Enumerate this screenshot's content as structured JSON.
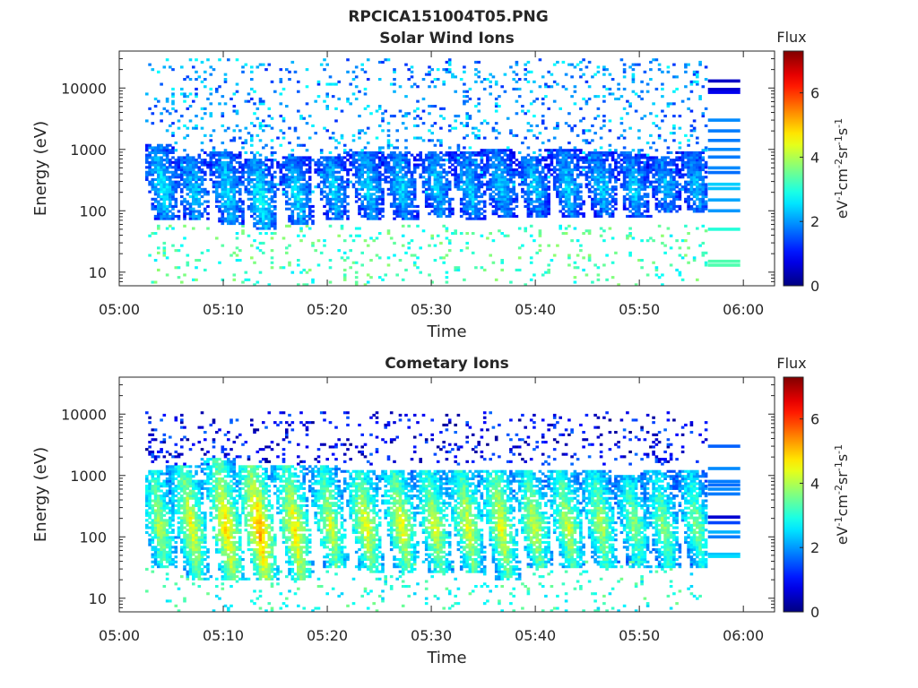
{
  "figure": {
    "title": "RPCICA151004T05.PNG"
  },
  "chart_data": [
    {
      "type": "heatmap",
      "title": "Solar Wind Ions",
      "xlabel": "Time",
      "ylabel": "Energy (eV)",
      "x_ticks": [
        "05:00",
        "05:10",
        "05:20",
        "05:30",
        "05:40",
        "05:50",
        "06:00"
      ],
      "y_ticks": [
        "10",
        "100",
        "1000",
        "10000"
      ],
      "y_scale": "log",
      "y_range": [
        6,
        40000
      ],
      "x_range_minutes": [
        0,
        63
      ],
      "data_extent_minutes": [
        2.5,
        56.5
      ],
      "colorbar": {
        "title": "Flux",
        "label": "eV-1cm-2sr-1s-1",
        "label_parts": [
          "eV",
          "-1",
          "cm",
          "-2",
          "sr",
          "-1",
          "s",
          "-1"
        ],
        "ticks": [
          "0",
          "2",
          "4",
          "6"
        ],
        "range": [
          0,
          7.3
        ],
        "colormap": "jet"
      },
      "bursts": [
        {
          "t": 4.0,
          "emin": 70,
          "emax": 1200,
          "peak_e": 250,
          "level": 2.8
        },
        {
          "t": 7.0,
          "emin": 70,
          "emax": 800,
          "peak_e": 200,
          "level": 2.6
        },
        {
          "t": 10.3,
          "emin": 60,
          "emax": 900,
          "peak_e": 200,
          "level": 2.7
        },
        {
          "t": 13.5,
          "emin": 50,
          "emax": 700,
          "peak_e": 150,
          "level": 2.9
        },
        {
          "t": 17.0,
          "emin": 60,
          "emax": 800,
          "peak_e": 180,
          "level": 2.7
        },
        {
          "t": 20.5,
          "emin": 70,
          "emax": 800,
          "peak_e": 220,
          "level": 2.6
        },
        {
          "t": 23.8,
          "emin": 70,
          "emax": 900,
          "peak_e": 250,
          "level": 2.6
        },
        {
          "t": 27.0,
          "emin": 70,
          "emax": 900,
          "peak_e": 250,
          "level": 2.6
        },
        {
          "t": 30.4,
          "emin": 80,
          "emax": 900,
          "peak_e": 250,
          "level": 2.5
        },
        {
          "t": 33.6,
          "emin": 70,
          "emax": 900,
          "peak_e": 220,
          "level": 2.5
        },
        {
          "t": 36.6,
          "emin": 80,
          "emax": 1000,
          "peak_e": 250,
          "level": 2.5
        },
        {
          "t": 39.8,
          "emin": 80,
          "emax": 800,
          "peak_e": 250,
          "level": 2.5
        },
        {
          "t": 43.0,
          "emin": 80,
          "emax": 1000,
          "peak_e": 250,
          "level": 2.5
        },
        {
          "t": 46.2,
          "emin": 80,
          "emax": 900,
          "peak_e": 250,
          "level": 2.5
        },
        {
          "t": 49.4,
          "emin": 80,
          "emax": 900,
          "peak_e": 220,
          "level": 2.5
        },
        {
          "t": 52.4,
          "emin": 90,
          "emax": 800,
          "peak_e": 250,
          "level": 2.4
        },
        {
          "t": 55.4,
          "emin": 90,
          "emax": 900,
          "peak_e": 250,
          "level": 2.4
        }
      ],
      "background": {
        "emin": 200,
        "emax": 30000,
        "level": 2.0
      },
      "low_energy_band": {
        "emin": 6,
        "emax": 60,
        "level": 3.2
      },
      "stripes": [
        {
          "e": 13000,
          "level": 0.5
        },
        {
          "e": 9500,
          "level": 0.6
        },
        {
          "e": 8500,
          "level": 0.8
        },
        {
          "e": 3000,
          "level": 1.9
        },
        {
          "e": 2000,
          "level": 1.8
        },
        {
          "e": 1400,
          "level": 1.8
        },
        {
          "e": 1000,
          "level": 1.9
        },
        {
          "e": 750,
          "level": 1.8
        },
        {
          "e": 500,
          "level": 1.9
        },
        {
          "e": 420,
          "level": 1.7
        },
        {
          "e": 270,
          "level": 2.4
        },
        {
          "e": 230,
          "level": 2.3
        },
        {
          "e": 150,
          "level": 2.1
        },
        {
          "e": 100,
          "level": 2.0
        },
        {
          "e": 50,
          "level": 3.0
        },
        {
          "e": 15,
          "level": 3.3
        },
        {
          "e": 13,
          "level": 3.3
        }
      ]
    },
    {
      "type": "heatmap",
      "title": "Cometary Ions",
      "xlabel": "Time",
      "ylabel": "Energy (eV)",
      "x_ticks": [
        "05:00",
        "05:10",
        "05:20",
        "05:30",
        "05:40",
        "05:50",
        "06:00"
      ],
      "y_ticks": [
        "10",
        "100",
        "1000",
        "10000"
      ],
      "y_scale": "log",
      "y_range": [
        6,
        40000
      ],
      "x_range_minutes": [
        0,
        63
      ],
      "data_extent_minutes": [
        2.5,
        56.5
      ],
      "colorbar": {
        "title": "Flux",
        "label": "eV-1cm-2sr-1s-1",
        "label_parts": [
          "eV",
          "-1",
          "cm",
          "-2",
          "sr",
          "-1",
          "s",
          "-1"
        ],
        "ticks": [
          "0",
          "2",
          "4",
          "6"
        ],
        "range": [
          0,
          7.3
        ],
        "colormap": "jet"
      },
      "bursts": [
        {
          "t": 3.8,
          "emin": 30,
          "emax": 1200,
          "peak_e": 150,
          "level": 4.2
        },
        {
          "t": 6.8,
          "emin": 20,
          "emax": 1500,
          "peak_e": 150,
          "level": 4.6
        },
        {
          "t": 10.2,
          "emin": 20,
          "emax": 2000,
          "peak_e": 130,
          "level": 5.0
        },
        {
          "t": 13.4,
          "emin": 20,
          "emax": 1500,
          "peak_e": 120,
          "level": 5.4
        },
        {
          "t": 16.8,
          "emin": 20,
          "emax": 1500,
          "peak_e": 120,
          "level": 4.9
        },
        {
          "t": 20.2,
          "emin": 30,
          "emax": 1500,
          "peak_e": 150,
          "level": 4.4
        },
        {
          "t": 23.6,
          "emin": 25,
          "emax": 1200,
          "peak_e": 150,
          "level": 4.6
        },
        {
          "t": 27.0,
          "emin": 25,
          "emax": 1200,
          "peak_e": 150,
          "level": 4.6
        },
        {
          "t": 30.2,
          "emin": 25,
          "emax": 1200,
          "peak_e": 150,
          "level": 4.4
        },
        {
          "t": 33.4,
          "emin": 25,
          "emax": 1200,
          "peak_e": 150,
          "level": 4.5
        },
        {
          "t": 36.6,
          "emin": 20,
          "emax": 1200,
          "peak_e": 150,
          "level": 4.6
        },
        {
          "t": 39.8,
          "emin": 30,
          "emax": 1200,
          "peak_e": 150,
          "level": 4.4
        },
        {
          "t": 43.0,
          "emin": 30,
          "emax": 1200,
          "peak_e": 150,
          "level": 4.4
        },
        {
          "t": 46.2,
          "emin": 30,
          "emax": 1200,
          "peak_e": 150,
          "level": 4.2
        },
        {
          "t": 49.4,
          "emin": 30,
          "emax": 1000,
          "peak_e": 150,
          "level": 3.9
        },
        {
          "t": 52.2,
          "emin": 30,
          "emax": 1200,
          "peak_e": 150,
          "level": 3.9
        },
        {
          "t": 55.4,
          "emin": 30,
          "emax": 1200,
          "peak_e": 150,
          "level": 3.8
        }
      ],
      "background": {
        "emin": 1500,
        "emax": 11000,
        "level": 0.9
      },
      "low_energy_band": {
        "emin": 6,
        "emax": 40,
        "level": 3.0
      },
      "stripes": [
        {
          "e": 3000,
          "level": 1.6
        },
        {
          "e": 1300,
          "level": 1.9
        },
        {
          "e": 800,
          "level": 1.8
        },
        {
          "e": 700,
          "level": 1.7
        },
        {
          "e": 600,
          "level": 1.9
        },
        {
          "e": 500,
          "level": 1.8
        },
        {
          "e": 210,
          "level": 0.6
        },
        {
          "e": 170,
          "level": 1.4
        },
        {
          "e": 120,
          "level": 2.2
        },
        {
          "e": 100,
          "level": 1.8
        },
        {
          "e": 52,
          "level": 2.3
        },
        {
          "e": 48,
          "level": 2.5
        }
      ]
    }
  ]
}
